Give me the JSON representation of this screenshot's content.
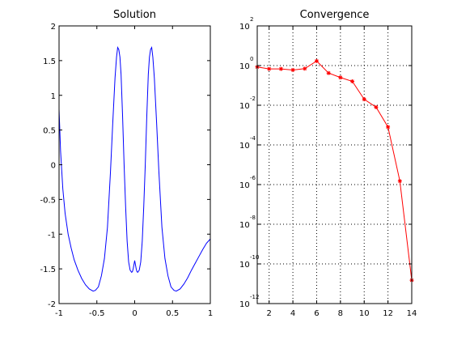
{
  "figure": {
    "background": "#ffffff",
    "axes_color": "#000000"
  },
  "chart_data": [
    {
      "type": "line",
      "title": "Solution",
      "xlabel": "",
      "ylabel": "",
      "xlim": [
        -1,
        1
      ],
      "ylim": [
        -2,
        2
      ],
      "xticks": [
        -1,
        -0.5,
        0,
        0.5,
        1
      ],
      "xtick_labels": [
        "-1",
        "-0.5",
        "0",
        "0.5",
        "1"
      ],
      "yticks": [
        -2,
        -1.5,
        -1,
        -0.5,
        0,
        0.5,
        1,
        1.5,
        2
      ],
      "ytick_labels": [
        "-2",
        "-1.5",
        "-1",
        "-0.5",
        "0",
        "0.5",
        "1",
        "1.5",
        "2"
      ],
      "grid": false,
      "line_color": "#0000ff",
      "series": [
        {
          "x": [
            -1,
            -0.98,
            -0.95,
            -0.92,
            -0.88,
            -0.84,
            -0.8,
            -0.75,
            -0.7,
            -0.65,
            -0.6,
            -0.55,
            -0.52,
            -0.48,
            -0.44,
            -0.4,
            -0.36,
            -0.32,
            -0.29,
            -0.26,
            -0.24,
            -0.225,
            -0.21,
            -0.195,
            -0.18,
            -0.16,
            -0.14,
            -0.12,
            -0.1,
            -0.08,
            -0.06,
            -0.04,
            -0.03,
            -0.02,
            -0.01,
            0,
            0.01,
            0.02,
            0.03,
            0.04,
            0.06,
            0.08,
            0.1,
            0.12,
            0.14,
            0.16,
            0.18,
            0.195,
            0.21,
            0.225,
            0.24,
            0.26,
            0.29,
            0.32,
            0.36,
            0.4,
            0.44,
            0.48,
            0.52,
            0.55,
            0.6,
            0.65,
            0.7,
            0.75,
            0.8,
            0.85,
            0.9,
            0.95,
            1
          ],
          "y": [
            0.8,
            0.2,
            -0.35,
            -0.7,
            -1.0,
            -1.2,
            -1.37,
            -1.52,
            -1.64,
            -1.73,
            -1.79,
            -1.82,
            -1.81,
            -1.76,
            -1.6,
            -1.35,
            -0.9,
            -0.1,
            0.6,
            1.25,
            1.55,
            1.69,
            1.66,
            1.55,
            1.3,
            0.7,
            0.0,
            -0.6,
            -1.1,
            -1.4,
            -1.52,
            -1.55,
            -1.54,
            -1.5,
            -1.44,
            -1.38,
            -1.44,
            -1.5,
            -1.54,
            -1.55,
            -1.52,
            -1.4,
            -1.1,
            -0.6,
            0.0,
            0.7,
            1.3,
            1.55,
            1.66,
            1.69,
            1.55,
            1.25,
            0.6,
            -0.1,
            -0.9,
            -1.35,
            -1.6,
            -1.76,
            -1.81,
            -1.82,
            -1.79,
            -1.72,
            -1.63,
            -1.52,
            -1.42,
            -1.32,
            -1.22,
            -1.13,
            -1.07
          ]
        }
      ]
    },
    {
      "type": "line",
      "title": "Convergence",
      "xlabel": "",
      "ylabel": "",
      "yscale": "log",
      "xlim": [
        1,
        14
      ],
      "ylim": [
        1e-12,
        100
      ],
      "xticks": [
        2,
        4,
        6,
        8,
        10,
        12,
        14
      ],
      "xtick_labels": [
        "2",
        "4",
        "6",
        "8",
        "10",
        "12",
        "14"
      ],
      "ytick_bases": [
        "10",
        "10",
        "10",
        "10",
        "10",
        "10",
        "10",
        "10"
      ],
      "ytick_exponents": [
        "-12",
        "-10",
        "-8",
        "-6",
        "-4",
        "-2",
        "0",
        "2"
      ],
      "grid": true,
      "line_color": "#ff0000",
      "marker": "star",
      "series": [
        {
          "x": [
            1,
            2,
            3,
            4,
            5,
            6,
            7,
            8,
            9,
            10,
            11,
            12,
            13,
            14
          ],
          "y": [
            0.85,
            0.68,
            0.68,
            0.6,
            0.7,
            1.7,
            0.42,
            0.25,
            0.16,
            0.02,
            0.008,
            0.0008,
            1.5e-06,
            1.5e-11
          ]
        }
      ]
    }
  ]
}
